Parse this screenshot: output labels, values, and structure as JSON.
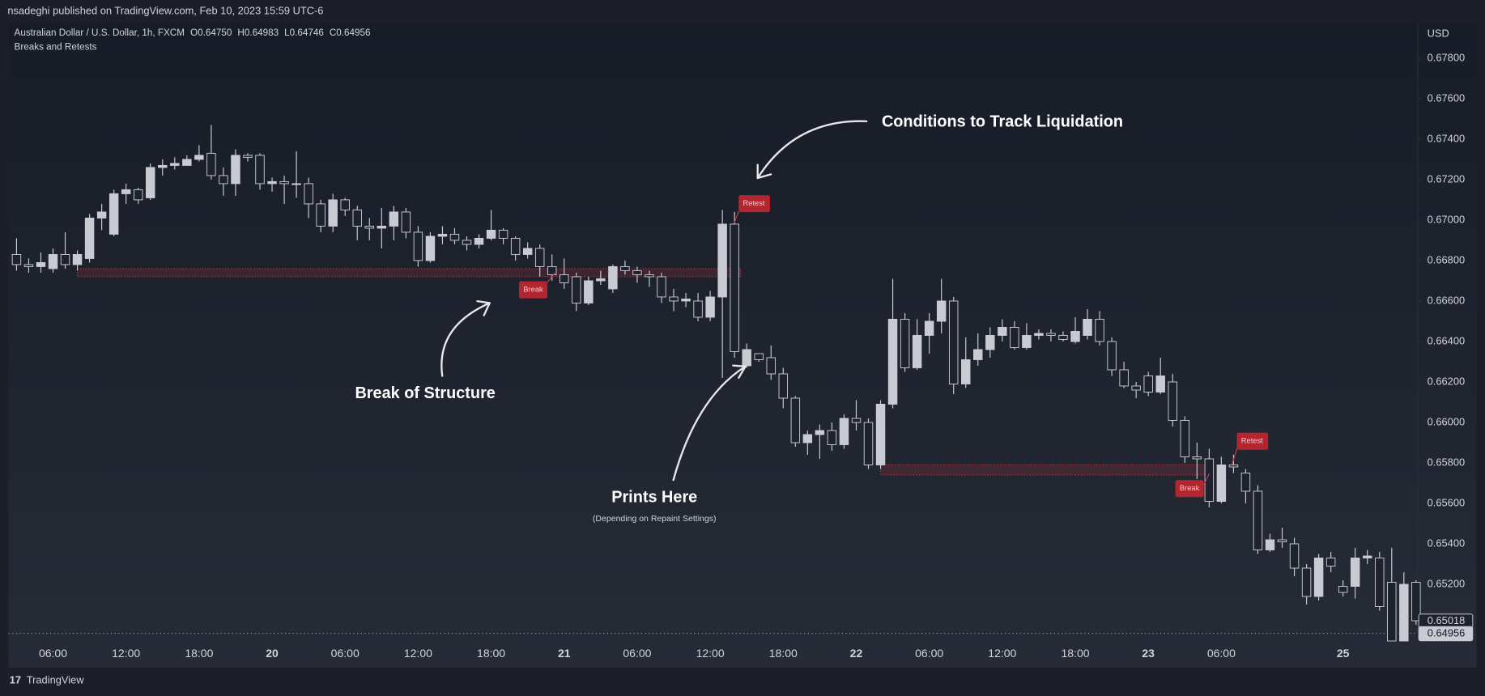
{
  "header": {
    "publisher": "nsadeghi published on TradingView.com, Feb 10, 2023 15:59 UTC-6",
    "ohlc": [
      "O0.64750",
      "H0.64983",
      "L0.64746",
      "C0.64956"
    ],
    "indicator": "Breaks and Retests",
    "currency": "USD",
    "footer": "TradingView"
  },
  "annotations": [
    "Conditions to Track Liquidation",
    "Break of Structure",
    "Prints Here",
    "(Depending on Repaint Settings)"
  ],
  "signals": [
    "Break",
    "Retest",
    "Break",
    "Retest"
  ],
  "chart_data": {
    "type": "candlestick",
    "categories": [
      null,
      null,
      null,
      "06:00",
      null,
      null,
      null,
      null,
      null,
      "12:00",
      null,
      null,
      null,
      null,
      null,
      "18:00",
      null,
      null,
      null,
      null,
      null,
      "20",
      null,
      null,
      null,
      null,
      null,
      "06:00",
      null,
      null,
      null,
      null,
      null,
      "12:00",
      null,
      null,
      null,
      null,
      null,
      "18:00",
      null,
      null,
      null,
      null,
      null,
      "21",
      null,
      null,
      null,
      null,
      null,
      "06:00",
      null,
      null,
      null,
      null,
      null,
      "12:00",
      null,
      null,
      null,
      null,
      null,
      "18:00",
      null,
      null,
      null,
      null,
      null,
      "22",
      null,
      null,
      null,
      null,
      null,
      "06:00",
      null,
      null,
      null,
      null,
      null,
      "12:00",
      null,
      null,
      null,
      null,
      null,
      "18:00",
      null,
      null,
      null,
      null,
      null,
      "23",
      null,
      null,
      null,
      null,
      null,
      "06:00",
      null,
      null,
      null,
      null,
      null,
      null,
      null,
      null,
      null,
      "25",
      null,
      null,
      null,
      null,
      null,
      null
    ],
    "series": [
      {
        "name": "Australian Dollar / U.S. Dollar, 1h, FXCM",
        "up_color": "#c9cbd3",
        "down_color": "#1e222d",
        "border_color": "#c9cbd3",
        "open": [
          0.6683,
          0.6678,
          0.6677,
          0.6676,
          0.6683,
          0.6678,
          0.6681,
          0.6701,
          0.6693,
          0.6713,
          0.6715,
          0.6711,
          0.6726,
          0.6727,
          0.6727,
          0.673,
          0.6733,
          0.6722,
          0.6718,
          0.6732,
          0.6732,
          0.6718,
          0.6719,
          0.6718,
          0.6718,
          0.6708,
          0.6697,
          0.671,
          0.6705,
          0.6697,
          0.6696,
          0.6697,
          0.6704,
          0.6694,
          0.668,
          0.6692,
          0.6693,
          0.669,
          0.6688,
          0.6691,
          0.6695,
          0.6691,
          0.6683,
          0.6686,
          0.6677,
          0.6673,
          0.6672,
          0.6659,
          0.667,
          0.6666,
          0.6677,
          0.6675,
          0.6673,
          0.6672,
          0.6662,
          0.666,
          0.666,
          0.6652,
          0.6662,
          0.6698,
          0.6628,
          0.6634,
          0.6632,
          0.6624,
          0.6612,
          0.659,
          0.6594,
          0.6596,
          0.6589,
          0.6602,
          0.66,
          0.6579,
          0.6609,
          0.6651,
          0.6627,
          0.6643,
          0.665,
          0.666,
          0.6619,
          0.6631,
          0.6636,
          0.6643,
          0.6647,
          0.6637,
          0.6643,
          0.6644,
          0.6643,
          0.664,
          0.6643,
          0.6651,
          0.664,
          0.6626,
          0.6618,
          0.6623,
          0.6615,
          0.662,
          0.6601,
          0.6583,
          0.6582,
          0.6561,
          0.6579,
          0.6575,
          0.6566,
          0.6537,
          0.6542,
          0.654,
          0.6528,
          0.6514,
          0.6533,
          0.6519,
          0.6519,
          0.6533,
          0.6533,
          0.6521,
          0.6492,
          0.6521
        ],
        "high": [
          0.6691,
          0.6681,
          0.6684,
          0.6686,
          0.6694,
          0.6685,
          0.6703,
          0.6708,
          0.6715,
          0.6718,
          0.6716,
          0.6728,
          0.673,
          0.6731,
          0.6732,
          0.6737,
          0.6747,
          0.6726,
          0.6735,
          0.6733,
          0.6733,
          0.6721,
          0.6722,
          0.6734,
          0.6721,
          0.671,
          0.6713,
          0.6711,
          0.6707,
          0.6701,
          0.6706,
          0.6707,
          0.6706,
          0.6697,
          0.6694,
          0.6697,
          0.6696,
          0.6692,
          0.6693,
          0.6705,
          0.6696,
          0.6692,
          0.6689,
          0.6688,
          0.6683,
          0.6681,
          0.6674,
          0.6672,
          0.6675,
          0.6678,
          0.668,
          0.6677,
          0.6675,
          0.6674,
          0.6666,
          0.6664,
          0.6664,
          0.6665,
          0.6705,
          0.6704,
          0.6639,
          0.6634,
          0.6638,
          0.6627,
          0.6613,
          0.6596,
          0.6599,
          0.66,
          0.6604,
          0.6611,
          0.6602,
          0.6611,
          0.6671,
          0.6654,
          0.6651,
          0.6654,
          0.6671,
          0.6662,
          0.6642,
          0.6644,
          0.6647,
          0.6651,
          0.665,
          0.6649,
          0.6646,
          0.6646,
          0.6645,
          0.6652,
          0.6656,
          0.6655,
          0.6642,
          0.663,
          0.662,
          0.6625,
          0.6632,
          0.6624,
          0.6603,
          0.659,
          0.6587,
          0.6583,
          0.6584,
          0.6577,
          0.6569,
          0.6545,
          0.6548,
          0.6543,
          0.653,
          0.6535,
          0.6536,
          0.6522,
          0.6538,
          0.6537,
          0.6536,
          0.6538,
          0.6526,
          0.6522
        ],
        "low": [
          0.6675,
          0.6674,
          0.6674,
          0.6674,
          0.6676,
          0.6675,
          0.6679,
          0.6695,
          0.6692,
          0.6708,
          0.6708,
          0.671,
          0.6722,
          0.6725,
          0.6727,
          0.6729,
          0.672,
          0.6712,
          0.6712,
          0.6729,
          0.6715,
          0.6714,
          0.6708,
          0.6711,
          0.6701,
          0.6694,
          0.6694,
          0.6702,
          0.669,
          0.669,
          0.6686,
          0.669,
          0.6691,
          0.6677,
          0.6679,
          0.6688,
          0.6688,
          0.6685,
          0.6686,
          0.669,
          0.6688,
          0.668,
          0.6681,
          0.6672,
          0.667,
          0.6666,
          0.6655,
          0.6658,
          0.6668,
          0.6664,
          0.6673,
          0.6669,
          0.6667,
          0.6659,
          0.6655,
          0.6657,
          0.665,
          0.665,
          0.6622,
          0.6632,
          0.6627,
          0.663,
          0.6621,
          0.6607,
          0.6588,
          0.6584,
          0.6582,
          0.6586,
          0.6587,
          0.6596,
          0.6577,
          0.6577,
          0.6607,
          0.6625,
          0.6626,
          0.6634,
          0.6644,
          0.6614,
          0.6617,
          0.6628,
          0.6632,
          0.664,
          0.6636,
          0.6636,
          0.6641,
          0.664,
          0.664,
          0.6639,
          0.6641,
          0.6638,
          0.6623,
          0.6617,
          0.6612,
          0.6613,
          0.6614,
          0.6598,
          0.658,
          0.6572,
          0.6558,
          0.656,
          0.6575,
          0.656,
          0.6535,
          0.6536,
          0.6538,
          0.6524,
          0.651,
          0.6512,
          0.6526,
          0.6514,
          0.6513,
          0.653,
          0.6507,
          0.6492,
          0.6492,
          0.65
        ],
        "close": [
          0.6678,
          0.6677,
          0.6679,
          0.6683,
          0.6678,
          0.6683,
          0.6701,
          0.6704,
          0.6713,
          0.6715,
          0.671,
          0.6726,
          0.6727,
          0.6728,
          0.673,
          0.6732,
          0.6722,
          0.6718,
          0.6732,
          0.6731,
          0.6718,
          0.6719,
          0.6718,
          0.6718,
          0.6708,
          0.6697,
          0.671,
          0.6705,
          0.6697,
          0.6696,
          0.6697,
          0.6704,
          0.6694,
          0.668,
          0.6692,
          0.6693,
          0.669,
          0.6688,
          0.6691,
          0.6695,
          0.6691,
          0.6683,
          0.6686,
          0.6677,
          0.6673,
          0.6669,
          0.6659,
          0.667,
          0.6671,
          0.6677,
          0.6675,
          0.6673,
          0.6672,
          0.6662,
          0.666,
          0.6661,
          0.6652,
          0.6662,
          0.6698,
          0.6635,
          0.6636,
          0.6631,
          0.6624,
          0.6612,
          0.659,
          0.6594,
          0.6596,
          0.6589,
          0.6602,
          0.66,
          0.6579,
          0.6609,
          0.6651,
          0.6627,
          0.6643,
          0.665,
          0.666,
          0.6619,
          0.6631,
          0.6636,
          0.6643,
          0.6647,
          0.6637,
          0.6643,
          0.6644,
          0.6643,
          0.6641,
          0.6645,
          0.6651,
          0.664,
          0.6626,
          0.6618,
          0.6616,
          0.6615,
          0.6623,
          0.6601,
          0.6583,
          0.6582,
          0.6561,
          0.6579,
          0.6578,
          0.6566,
          0.6537,
          0.6542,
          0.6541,
          0.6528,
          0.6514,
          0.6533,
          0.6529,
          0.6516,
          0.6533,
          0.6534,
          0.6509,
          0.6492,
          0.652,
          0.6502
        ]
      }
    ],
    "zones": [
      {
        "top": 0.6676,
        "bottom": 0.6672,
        "color": "#f23645"
      },
      {
        "top": 0.6579,
        "bottom": 0.6574,
        "color": "#f23645"
      }
    ],
    "price_labels": [
      {
        "value": 0.65018,
        "label": "0.65018"
      },
      {
        "value": 0.64956,
        "label": "0.64956"
      }
    ],
    "ylim": [
      0.6492,
      0.6797
    ],
    "yticks": [
      {
        "value": 0.652,
        "label": "0.65200"
      },
      {
        "value": 0.654,
        "label": "0.65400"
      },
      {
        "value": 0.656,
        "label": "0.65600"
      },
      {
        "value": 0.658,
        "label": "0.65800"
      },
      {
        "value": 0.66,
        "label": "0.66000"
      },
      {
        "value": 0.662,
        "label": "0.66200"
      },
      {
        "value": 0.664,
        "label": "0.66400"
      },
      {
        "value": 0.666,
        "label": "0.66600"
      },
      {
        "value": 0.668,
        "label": "0.66800"
      },
      {
        "value": 0.67,
        "label": "0.67000"
      },
      {
        "value": 0.672,
        "label": "0.67200"
      },
      {
        "value": 0.674,
        "label": "0.67400"
      },
      {
        "value": 0.676,
        "label": "0.67600"
      },
      {
        "value": 0.678,
        "label": "0.67800"
      }
    ],
    "grid": false
  }
}
